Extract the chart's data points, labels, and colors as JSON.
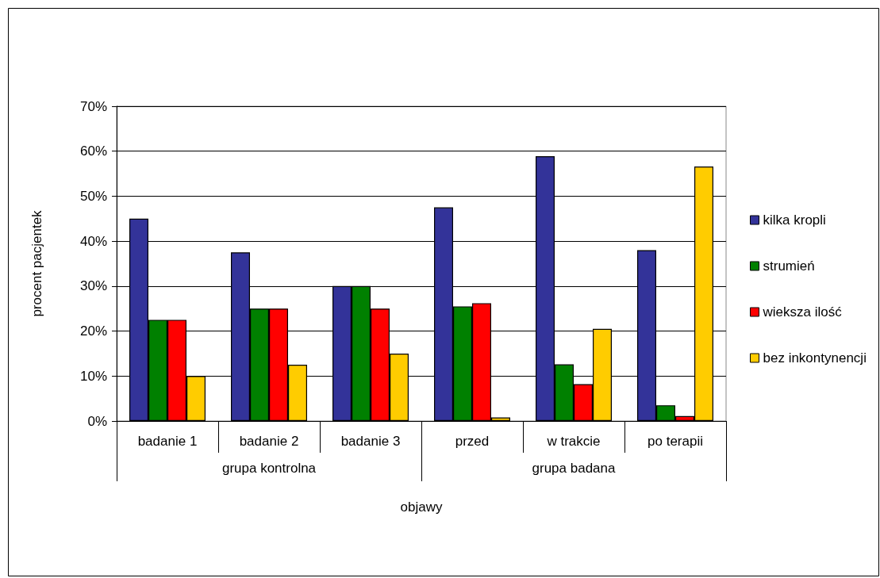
{
  "chart_data": {
    "type": "bar",
    "xlabel": "objawy",
    "ylabel": "procent pacjentek",
    "categories": [
      "badanie 1",
      "badanie 2",
      "badanie 3",
      "przed",
      "w trakcie",
      "po terapii"
    ],
    "annotations": [
      "grupa kontrolna",
      "grupa badana"
    ],
    "series": [
      {
        "name": "kilka kropli",
        "color": "#333399",
        "values": [
          45,
          37.5,
          30,
          47.5,
          58.9,
          38
        ]
      },
      {
        "name": "strumień",
        "color": "#008000",
        "values": [
          22.5,
          25,
          30,
          25.5,
          12.6,
          3.5
        ]
      },
      {
        "name": "wieksza ilość",
        "color": "#ff0000",
        "values": [
          22.5,
          25,
          25,
          26.2,
          8.2,
          1.1
        ]
      },
      {
        "name": "bez inkontynencji",
        "color": "#ffcc00",
        "values": [
          10,
          12.5,
          15,
          0.8,
          20.5,
          56.6
        ]
      }
    ],
    "ylim": [
      0,
      70
    ],
    "yticks": [
      {
        "value": 0,
        "label": "0%"
      },
      {
        "value": 10,
        "label": "10%"
      },
      {
        "value": 20,
        "label": "20%"
      },
      {
        "value": 30,
        "label": "30%"
      },
      {
        "value": 40,
        "label": "40%"
      },
      {
        "value": 50,
        "label": "50%"
      },
      {
        "value": 60,
        "label": "60%"
      },
      {
        "value": 70,
        "label": "70%"
      }
    ],
    "grid": "y",
    "legend": "right"
  }
}
